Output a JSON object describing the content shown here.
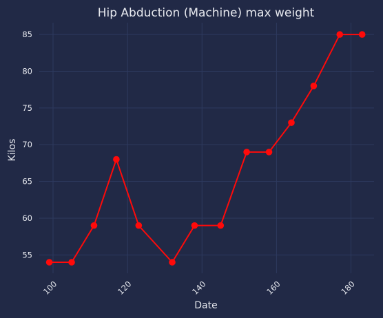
{
  "chart_data": {
    "type": "line",
    "title": "Hip Abduction (Machine) max weight",
    "xlabel": "Date",
    "ylabel": "Kilos",
    "xlim": [
      96.3,
      186.2
    ],
    "ylim": [
      52.5,
      86.6
    ],
    "xticks": [
      100,
      120,
      140,
      160,
      180
    ],
    "yticks": [
      55,
      60,
      65,
      70,
      75,
      80,
      85
    ],
    "grid": true,
    "series": [
      {
        "color": "#ff0a0a",
        "x": [
          99,
          105,
          111,
          117,
          123,
          132,
          138,
          145,
          152,
          158,
          164,
          170,
          177,
          183
        ],
        "y": [
          54,
          54,
          59,
          68,
          59,
          54,
          59,
          59,
          69,
          69,
          73,
          78,
          85,
          85
        ]
      }
    ]
  }
}
